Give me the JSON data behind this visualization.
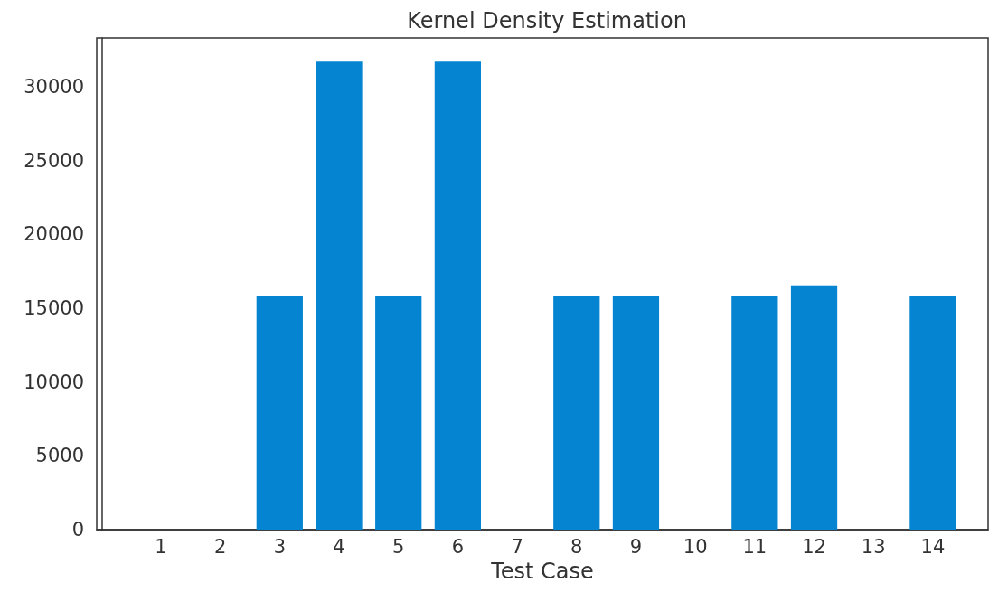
{
  "chart_data": {
    "type": "bar",
    "title": "Kernel Density Estimation",
    "xlabel": "Test Case",
    "x": [
      1,
      2,
      3,
      4,
      5,
      6,
      7,
      8,
      9,
      10,
      11,
      12,
      13,
      14
    ],
    "values": [
      0,
      0,
      15800,
      31700,
      15850,
      31700,
      0,
      15850,
      15850,
      0,
      15800,
      16550,
      0,
      15800
    ],
    "color": "#0484d1",
    "xlim": [
      -0.08,
      14.93
    ],
    "xticks": [
      1,
      2,
      3,
      4,
      5,
      6,
      7,
      8,
      9,
      10,
      11,
      12,
      13,
      14
    ],
    "ylim": [
      0,
      33300
    ],
    "yticks": [
      0,
      5000,
      10000,
      15000,
      20000,
      25000,
      30000
    ],
    "grid": false
  }
}
